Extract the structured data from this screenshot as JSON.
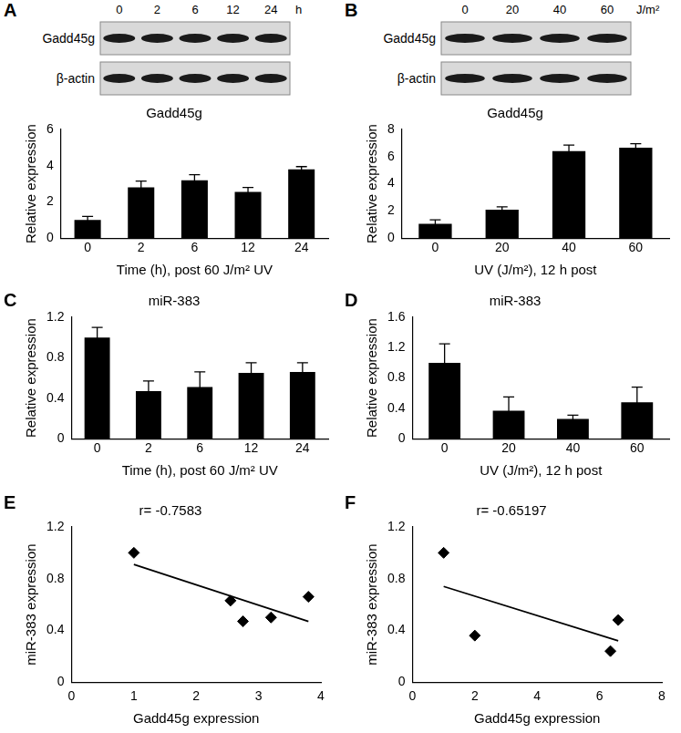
{
  "chart_data": [
    {
      "panel": "A",
      "type": "bar",
      "title": "Gadd45g",
      "x_label": "Time (h), post 60 J/m² UV",
      "y_label": "Relative expression",
      "categories": [
        "0",
        "2",
        "6",
        "12",
        "24"
      ],
      "values": [
        1.0,
        2.8,
        3.2,
        2.55,
        3.8
      ],
      "errors": [
        0.2,
        0.35,
        0.3,
        0.25,
        0.15
      ],
      "color": "#000000",
      "ylim": [
        0,
        6
      ],
      "yticks": [
        0,
        2,
        4,
        6
      ],
      "grid": false,
      "blot": {
        "lanes": [
          "0",
          "2",
          "6",
          "12",
          "24"
        ],
        "unit": "h",
        "rows": [
          "Gadd45g",
          "β-actin"
        ]
      }
    },
    {
      "panel": "B",
      "type": "bar",
      "title": "Gadd45g",
      "x_label": "UV (J/m²), 12 h post",
      "y_label": "Relative expression",
      "categories": [
        "0",
        "20",
        "40",
        "60"
      ],
      "values": [
        1.05,
        2.1,
        6.4,
        6.65
      ],
      "errors": [
        0.3,
        0.2,
        0.45,
        0.3
      ],
      "color": "#000000",
      "ylim": [
        0,
        8
      ],
      "yticks": [
        0,
        2,
        4,
        6,
        8
      ],
      "grid": false,
      "blot": {
        "lanes": [
          "0",
          "20",
          "40",
          "60"
        ],
        "unit": "J/m²",
        "rows": [
          "Gadd45g",
          "β-actin"
        ]
      }
    },
    {
      "panel": "C",
      "type": "bar",
      "title": "miR-383",
      "x_label": "Time (h), post 60 J/m² UV",
      "y_label": "Relative expression",
      "categories": [
        "0",
        "2",
        "6",
        "12",
        "24"
      ],
      "values": [
        1.0,
        0.47,
        0.51,
        0.65,
        0.66
      ],
      "errors": [
        0.1,
        0.1,
        0.15,
        0.1,
        0.09
      ],
      "color": "#000000",
      "ylim": [
        0,
        1.2
      ],
      "yticks": [
        0,
        0.4,
        0.8,
        1.2
      ],
      "grid": false
    },
    {
      "panel": "D",
      "type": "bar",
      "title": "miR-383",
      "x_label": "UV (J/m²), 12 h post",
      "y_label": "Relative expression",
      "categories": [
        "0",
        "20",
        "40",
        "60"
      ],
      "values": [
        1.0,
        0.37,
        0.26,
        0.48
      ],
      "errors": [
        0.25,
        0.18,
        0.05,
        0.2
      ],
      "color": "#000000",
      "ylim": [
        0,
        1.6
      ],
      "yticks": [
        0,
        0.4,
        0.8,
        1.2,
        1.6
      ],
      "grid": false
    },
    {
      "panel": "E",
      "type": "scatter",
      "title": "r= -0.7583",
      "x_label": "Gadd45g expression",
      "y_label": "miR-383 expression",
      "x": [
        1.0,
        2.55,
        2.75,
        3.2,
        3.8
      ],
      "values": [
        1.0,
        0.63,
        0.47,
        0.5,
        0.66
      ],
      "fit": {
        "x": [
          1.0,
          3.8
        ],
        "values": [
          0.91,
          0.47
        ]
      },
      "color": "#000000",
      "marker": "diamond",
      "xlim": [
        0,
        4
      ],
      "xticks": [
        0,
        1,
        2,
        3,
        4
      ],
      "ylim": [
        0,
        1.2
      ],
      "yticks": [
        0,
        0.4,
        0.8,
        1.2
      ],
      "grid": false
    },
    {
      "panel": "F",
      "type": "scatter",
      "title": "r= -0.65197",
      "x_label": "Gadd45g expression",
      "y_label": "miR-383 expression",
      "x": [
        1.0,
        2.0,
        6.35,
        6.6
      ],
      "values": [
        1.0,
        0.36,
        0.24,
        0.48
      ],
      "fit": {
        "x": [
          1.0,
          6.6
        ],
        "values": [
          0.74,
          0.32
        ]
      },
      "color": "#000000",
      "marker": "diamond",
      "xlim": [
        0,
        8
      ],
      "xticks": [
        0,
        2,
        4,
        6,
        8
      ],
      "ylim": [
        0,
        1.2
      ],
      "yticks": [
        0,
        0.4,
        0.8,
        1.2
      ],
      "grid": false
    }
  ]
}
